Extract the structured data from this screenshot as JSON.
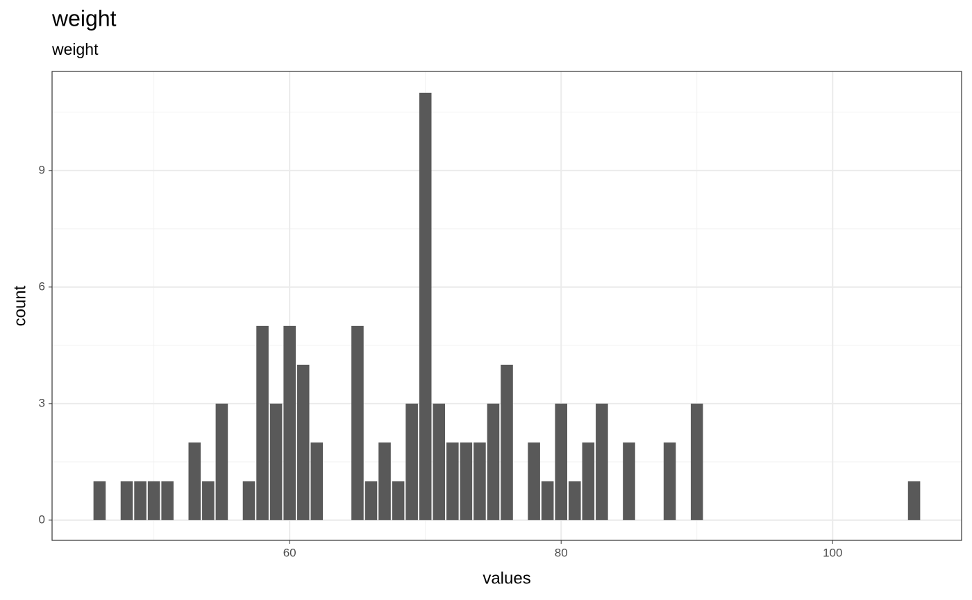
{
  "chart_data": {
    "type": "bar",
    "title": "weight",
    "subtitle": "weight",
    "x_label": "values",
    "y_label": "count",
    "x": [
      46,
      48,
      49,
      50,
      51,
      53,
      54,
      55,
      57,
      58,
      59,
      60,
      61,
      62,
      65,
      66,
      67,
      68,
      69,
      70,
      71,
      72,
      73,
      74,
      75,
      76,
      78,
      79,
      80,
      81,
      82,
      83,
      85,
      88,
      90,
      106
    ],
    "values": [
      1,
      1,
      1,
      1,
      1,
      2,
      1,
      3,
      1,
      5,
      3,
      5,
      4,
      2,
      5,
      1,
      2,
      1,
      3,
      11,
      3,
      2,
      2,
      2,
      3,
      4,
      2,
      1,
      3,
      1,
      2,
      3,
      2,
      2,
      3,
      1
    ],
    "color": "#595959",
    "xlim": [
      42.5,
      109.5
    ],
    "xticks": [
      60,
      80,
      100
    ],
    "ylim": [
      -0.52,
      11.55
    ],
    "yticks": [
      0,
      3,
      6,
      9
    ],
    "grid": true
  }
}
